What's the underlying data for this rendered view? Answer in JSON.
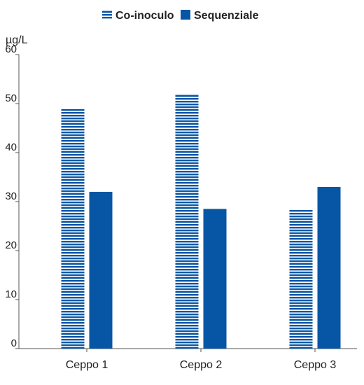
{
  "chart_data": {
    "type": "bar",
    "categories": [
      "Ceppo 1",
      "Ceppo 2",
      "Ceppo 3"
    ],
    "series": [
      {
        "name": "Co-inoculo",
        "values": [
          49,
          52,
          28.5
        ],
        "pattern": "striped",
        "color": "#0756a5"
      },
      {
        "name": "Sequenziale",
        "values": [
          32,
          28.5,
          33
        ],
        "pattern": "solid",
        "color": "#0756a5"
      }
    ],
    "ylabel": "µg/L",
    "ylim": [
      0,
      60
    ],
    "yticks": [
      0,
      10,
      20,
      30,
      40,
      50,
      60
    ],
    "grid": false,
    "legend_position": "top"
  }
}
